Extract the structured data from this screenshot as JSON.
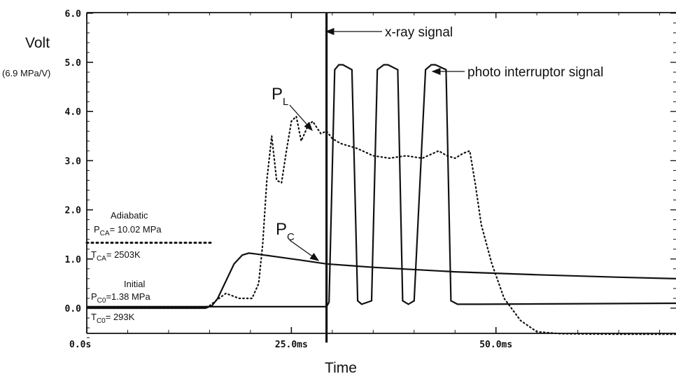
{
  "chart_data": {
    "type": "line",
    "xlabel": "Time",
    "ylabel": "Volt",
    "ylabel_unit": "(6.9 MPa/V)",
    "xlim": [
      0,
      72
    ],
    "ylim": [
      -0.7,
      6.0
    ],
    "x_ticks": [
      {
        "value": 0,
        "label": "0.0s"
      },
      {
        "value": 25,
        "label": "25.0ms"
      },
      {
        "value": 50,
        "label": "50.0ms"
      }
    ],
    "y_ticks": [
      {
        "value": 0,
        "label": "0.0"
      },
      {
        "value": 1,
        "label": "1.0"
      },
      {
        "value": 2,
        "label": "2.0"
      },
      {
        "value": 3,
        "label": "3.0"
      },
      {
        "value": 4,
        "label": "4.0"
      },
      {
        "value": 5,
        "label": "5.0"
      },
      {
        "value": 6,
        "label": "6.0"
      }
    ],
    "series": [
      {
        "name": "photo interruptor signal",
        "style": "solid",
        "x": [
          0,
          15,
          28.5,
          29.3,
          29.6,
          30.3,
          30.8,
          31.3,
          32.4,
          33.1,
          33.6,
          34.8,
          35.5,
          36.3,
          36.8,
          38.0,
          38.6,
          39.3,
          40.0,
          41.4,
          42.1,
          42.6,
          43.9,
          44.5,
          45.3,
          46.0,
          48,
          72
        ],
        "y": [
          0.03,
          0.03,
          0.03,
          0.03,
          0.12,
          4.85,
          4.95,
          4.95,
          4.85,
          0.15,
          0.08,
          0.15,
          4.85,
          4.95,
          4.95,
          4.85,
          0.15,
          0.08,
          0.15,
          4.85,
          4.95,
          4.95,
          4.85,
          0.15,
          0.08,
          0.08,
          0.08,
          0.1
        ]
      },
      {
        "name": "P_C",
        "style": "solid",
        "x": [
          0,
          14.5,
          15.3,
          16.0,
          17.0,
          18.0,
          19.0,
          19.8,
          20.8,
          23.0,
          26.0,
          29.3,
          35,
          45,
          55,
          65,
          72
        ],
        "y": [
          0.0,
          0.0,
          0.05,
          0.2,
          0.55,
          0.9,
          1.08,
          1.12,
          1.1,
          1.05,
          0.98,
          0.9,
          0.83,
          0.74,
          0.68,
          0.63,
          0.6
        ]
      },
      {
        "name": "P_L",
        "style": "dotted",
        "x": [
          0,
          14.0,
          15.0,
          16.0,
          17.0,
          17.8,
          18.6,
          19.4,
          20.2,
          21.0,
          21.5,
          22.0,
          22.6,
          23.2,
          23.8,
          24.4,
          25.0,
          25.6,
          26.2,
          27.0,
          27.6,
          28.2,
          28.6,
          29.3,
          30.0,
          31.0,
          33.0,
          35.0,
          37.0,
          39.0,
          41.0,
          43.0,
          44.0,
          45.0,
          46.0,
          46.8,
          47.5,
          48.2,
          49.5,
          51.0,
          53.0,
          55.0,
          58,
          65,
          72
        ],
        "y": [
          0.0,
          0.0,
          0.05,
          0.18,
          0.3,
          0.25,
          0.2,
          0.2,
          0.2,
          0.5,
          1.3,
          2.6,
          3.5,
          2.6,
          2.55,
          3.2,
          3.8,
          3.9,
          3.4,
          3.7,
          3.8,
          3.65,
          3.55,
          3.6,
          3.45,
          3.35,
          3.25,
          3.1,
          3.05,
          3.1,
          3.05,
          3.2,
          3.1,
          3.05,
          3.15,
          3.2,
          2.5,
          1.7,
          0.9,
          0.2,
          -0.25,
          -0.48,
          -0.52,
          -0.53,
          -0.53
        ]
      },
      {
        "name": "x-ray signal",
        "style": "solid-thick",
        "x": [
          29.3,
          29.3
        ],
        "y": [
          -0.7,
          6.0
        ]
      },
      {
        "name": "Adiabatic",
        "style": "dotted-thick",
        "x": [
          0,
          15.3
        ],
        "y": [
          1.33,
          1.33
        ]
      }
    ],
    "annotations": {
      "xray": "x-ray signal",
      "photo": "photo interruptor signal",
      "pl": "P",
      "pl_sub": "L",
      "pc": "P",
      "pc_sub": "C",
      "adiabatic": "Adiabatic",
      "pca_main": "P",
      "pca_sub": "CA",
      "pca_val": "= 10.02 MPa",
      "tca_main": "T",
      "tca_sub": "CA",
      "tca_val": "= 2503K",
      "initial": "Initial",
      "pco_main": "P",
      "pco_sub": "C0",
      "pco_val": "=1.38 MPa",
      "tco_main": "T",
      "tco_sub": "C0",
      "tco_val": "= 293K"
    }
  }
}
